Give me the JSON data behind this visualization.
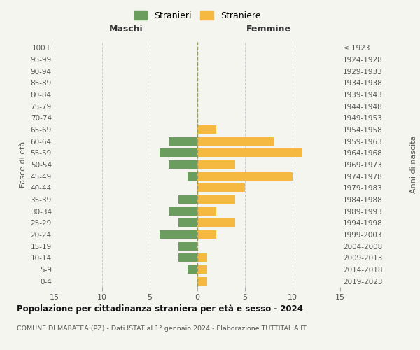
{
  "age_groups": [
    "0-4",
    "5-9",
    "10-14",
    "15-19",
    "20-24",
    "25-29",
    "30-34",
    "35-39",
    "40-44",
    "45-49",
    "50-54",
    "55-59",
    "60-64",
    "65-69",
    "70-74",
    "75-79",
    "80-84",
    "85-89",
    "90-94",
    "95-99",
    "100+"
  ],
  "birth_years": [
    "2019-2023",
    "2014-2018",
    "2009-2013",
    "2004-2008",
    "1999-2003",
    "1994-1998",
    "1989-1993",
    "1984-1988",
    "1979-1983",
    "1974-1978",
    "1969-1973",
    "1964-1968",
    "1959-1963",
    "1954-1958",
    "1949-1953",
    "1944-1948",
    "1939-1943",
    "1934-1938",
    "1929-1933",
    "1924-1928",
    "≤ 1923"
  ],
  "males": [
    0,
    1,
    2,
    2,
    4,
    2,
    3,
    2,
    0,
    1,
    3,
    4,
    3,
    0,
    0,
    0,
    0,
    0,
    0,
    0,
    0
  ],
  "females": [
    1,
    1,
    1,
    0,
    2,
    4,
    2,
    4,
    5,
    10,
    4,
    11,
    8,
    2,
    0,
    0,
    0,
    0,
    0,
    0,
    0
  ],
  "male_color": "#6b9e5e",
  "female_color": "#f5b942",
  "background_color": "#f5f5f0",
  "grid_color": "#cccccc",
  "center_line_color": "#999966",
  "xlim": 15,
  "title": "Popolazione per cittadinanza straniera per età e sesso - 2024",
  "subtitle": "COMUNE DI MARATEA (PZ) - Dati ISTAT al 1° gennaio 2024 - Elaborazione TUTTITALIA.IT",
  "xlabel_left": "Maschi",
  "xlabel_right": "Femmine",
  "ylabel_left": "Fasce di età",
  "ylabel_right": "Anni di nascita",
  "legend_stranieri": "Stranieri",
  "legend_straniere": "Straniere"
}
